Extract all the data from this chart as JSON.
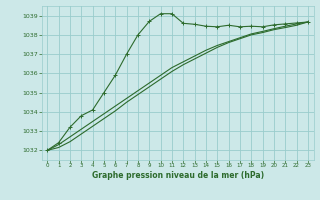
{
  "title": "Graphe pression niveau de la mer (hPa)",
  "bg_color": "#cce8e8",
  "grid_color": "#99cccc",
  "line_color": "#2d6b2d",
  "marker_color": "#2d6b2d",
  "ylim": [
    1031.5,
    1039.5
  ],
  "xlim": [
    -0.5,
    23.5
  ],
  "yticks": [
    1032,
    1033,
    1034,
    1035,
    1036,
    1037,
    1038,
    1039
  ],
  "xticks": [
    0,
    1,
    2,
    3,
    4,
    5,
    6,
    7,
    8,
    9,
    10,
    11,
    12,
    13,
    14,
    15,
    16,
    17,
    18,
    19,
    20,
    21,
    22,
    23
  ],
  "series1": [
    1032.0,
    1032.4,
    1033.2,
    1033.8,
    1034.1,
    1035.0,
    1035.9,
    1037.0,
    1038.0,
    1038.7,
    1039.1,
    1039.1,
    1038.6,
    1038.55,
    1038.45,
    1038.42,
    1038.5,
    1038.42,
    1038.45,
    1038.42,
    1038.52,
    1038.57,
    1038.62,
    1038.67
  ],
  "series2": [
    1032.0,
    1032.3,
    1032.7,
    1033.1,
    1033.5,
    1033.9,
    1034.3,
    1034.7,
    1035.1,
    1035.5,
    1035.9,
    1036.3,
    1036.6,
    1036.9,
    1037.2,
    1037.45,
    1037.65,
    1037.85,
    1038.05,
    1038.18,
    1038.32,
    1038.45,
    1038.57,
    1038.67
  ],
  "series3": [
    1032.0,
    1032.15,
    1032.45,
    1032.85,
    1033.25,
    1033.65,
    1034.05,
    1034.5,
    1034.9,
    1035.3,
    1035.7,
    1036.1,
    1036.45,
    1036.75,
    1037.05,
    1037.35,
    1037.6,
    1037.8,
    1038.0,
    1038.12,
    1038.27,
    1038.38,
    1038.5,
    1038.67
  ]
}
